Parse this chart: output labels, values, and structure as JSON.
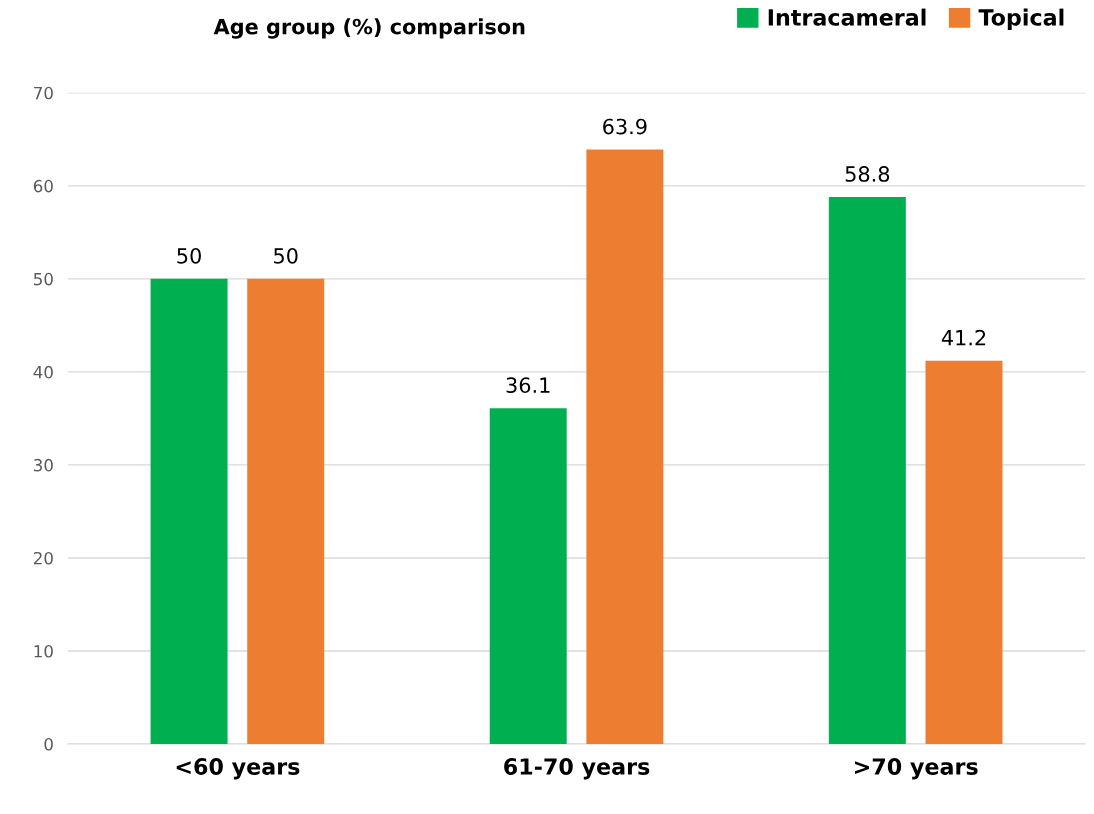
{
  "chart_data": {
    "type": "bar",
    "title": "Age group (%) comparison",
    "categories": [
      "<60 years",
      "61-70 years",
      ">70 years"
    ],
    "series": [
      {
        "name": "Intracameral",
        "color": "#00b050",
        "values": [
          50,
          36.1,
          58.8
        ]
      },
      {
        "name": "Topical",
        "color": "#ed7d31",
        "values": [
          50,
          63.9,
          41.2
        ]
      }
    ],
    "ylim": [
      0,
      70
    ],
    "yticks": [
      0,
      10,
      20,
      30,
      40,
      50,
      60,
      70
    ],
    "grid": "y",
    "legend": "top right",
    "data_labels": true
  }
}
